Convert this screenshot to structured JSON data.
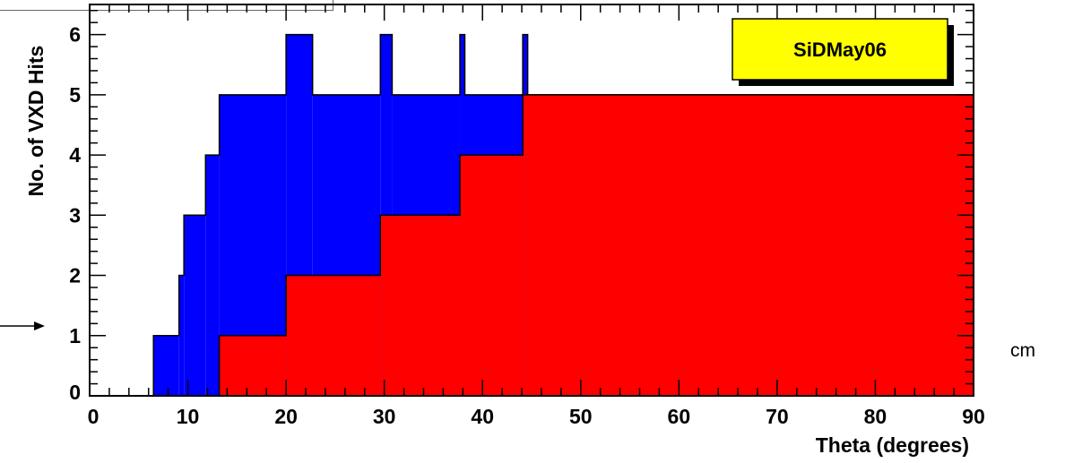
{
  "chart_data": {
    "type": "area",
    "title": "",
    "xlabel": "Theta (degrees)",
    "ylabel": "No. of VXD Hits",
    "xlim": [
      0,
      90
    ],
    "ylim": [
      0,
      6.5
    ],
    "x_ticks": [
      0,
      10,
      20,
      30,
      40,
      50,
      60,
      70,
      80,
      90
    ],
    "y_ticks": [
      0,
      1,
      2,
      3,
      4,
      5,
      6
    ],
    "grid": false,
    "legend": {
      "text": "SiDMay06",
      "position": "top-right",
      "fill": "#ffff00"
    },
    "series": [
      {
        "color": "#0000ff",
        "steps": [
          {
            "x0": 6.5,
            "x1": 9.1,
            "y": 1
          },
          {
            "x0": 9.1,
            "x1": 9.6,
            "y": 2
          },
          {
            "x0": 9.6,
            "x1": 11.8,
            "y": 3
          },
          {
            "x0": 11.8,
            "x1": 13.2,
            "y": 4
          },
          {
            "x0": 13.2,
            "x1": 20.0,
            "y": 5
          },
          {
            "x0": 20.0,
            "x1": 22.7,
            "y": 6
          },
          {
            "x0": 22.7,
            "x1": 29.6,
            "y": 5
          },
          {
            "x0": 29.6,
            "x1": 30.8,
            "y": 6
          },
          {
            "x0": 30.8,
            "x1": 37.7,
            "y": 5
          },
          {
            "x0": 37.7,
            "x1": 38.2,
            "y": 6
          },
          {
            "x0": 38.2,
            "x1": 44.1,
            "y": 5
          },
          {
            "x0": 44.1,
            "x1": 44.6,
            "y": 6
          },
          {
            "x0": 44.6,
            "x1": 90,
            "y": 5
          }
        ]
      },
      {
        "color": "#ff0000",
        "steps": [
          {
            "x0": 13.2,
            "x1": 20.0,
            "y": 1
          },
          {
            "x0": 20.0,
            "x1": 29.6,
            "y": 2
          },
          {
            "x0": 29.6,
            "x1": 37.7,
            "y": 3
          },
          {
            "x0": 37.7,
            "x1": 44.1,
            "y": 4
          },
          {
            "x0": 44.1,
            "x1": 90,
            "y": 5
          }
        ]
      }
    ]
  },
  "annotation": {
    "side_text": "cm"
  }
}
